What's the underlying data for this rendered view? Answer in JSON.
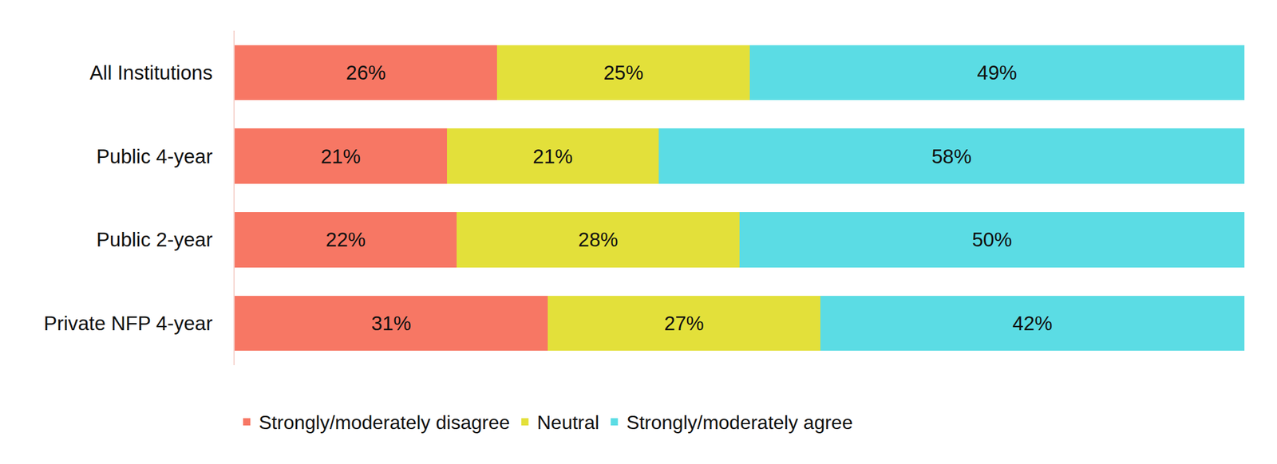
{
  "chart_data": {
    "type": "bar",
    "orientation": "horizontal",
    "stacked": true,
    "data_labels": true,
    "tick_labels": "y",
    "grid": false,
    "legend": "bottom",
    "categories": [
      "All Institutions",
      "Public 4-year",
      "Public 2-year",
      "Private NFP 4-year"
    ],
    "xlim": [
      0,
      100
    ],
    "series": [
      {
        "name": "Strongly/moderately disagree",
        "color": "#f77764",
        "values": [
          26,
          21,
          22,
          31
        ],
        "value_labels": [
          "26%",
          "21%",
          "22%",
          "31%"
        ]
      },
      {
        "name": "Neutral",
        "color": "#e3e03a",
        "values": [
          25,
          21,
          28,
          27
        ],
        "value_labels": [
          "25%",
          "21%",
          "28%",
          "27%"
        ]
      },
      {
        "name": "Strongly/moderately agree",
        "color": "#5bdce4",
        "values": [
          49,
          58,
          50,
          42
        ],
        "value_labels": [
          "49%",
          "58%",
          "50%",
          "42%"
        ]
      }
    ]
  }
}
